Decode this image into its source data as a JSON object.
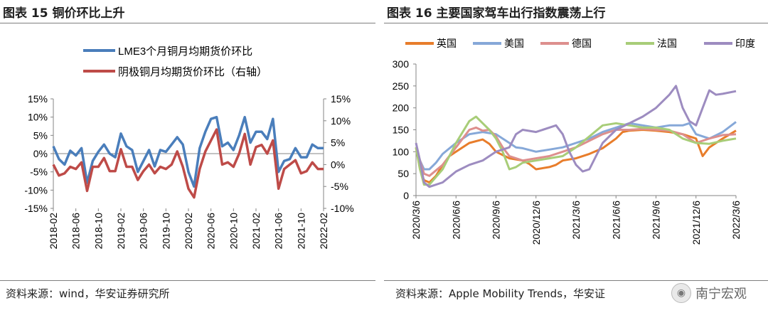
{
  "left": {
    "title": "图表 15 铜价环比上升",
    "source": "资料来源：wind，华安证券研究所",
    "chart_data": {
      "type": "line",
      "title": "铜价环比上升",
      "categories": [
        "2018-02",
        "2018-03",
        "2018-04",
        "2018-05",
        "2018-06",
        "2018-07",
        "2018-08",
        "2018-09",
        "2018-10",
        "2018-11",
        "2018-12",
        "2019-01",
        "2019-02",
        "2019-03",
        "2019-04",
        "2019-05",
        "2019-06",
        "2019-07",
        "2019-08",
        "2019-09",
        "2019-10",
        "2019-11",
        "2019-12",
        "2020-01",
        "2020-02",
        "2020-03",
        "2020-04",
        "2020-05",
        "2020-06",
        "2020-07",
        "2020-08",
        "2020-09",
        "2020-10",
        "2020-11",
        "2020-12",
        "2021-01",
        "2021-02",
        "2021-03",
        "2021-04",
        "2021-05",
        "2021-06",
        "2021-07",
        "2021-08",
        "2021-09",
        "2021-10",
        "2021-11",
        "2021-12",
        "2022-01",
        "2022-02"
      ],
      "tick_labels": [
        "2018-02",
        "2018-06",
        "2018-10",
        "2019-02",
        "2019-06",
        "2019-10",
        "2020-02",
        "2020-06",
        "2020-10",
        "2021-02",
        "2021-06",
        "2021-10",
        "2022-02"
      ],
      "left_axis": {
        "ticks": [
          "15%",
          "10%",
          "5%",
          "0%",
          "-5%",
          "-10%",
          "-15%"
        ],
        "min": -15,
        "max": 15
      },
      "right_axis": {
        "ticks": [
          "15%",
          "10%",
          "5%",
          "0%",
          "-5%",
          "-10%"
        ],
        "min": -10,
        "max": 15
      },
      "series": [
        {
          "name": "LME3个月铜月均期货价环比",
          "axis": "left",
          "color": "#4a7ebb",
          "values": [
            2.0,
            -1.5,
            -3.0,
            0.8,
            -0.5,
            1.5,
            -8.0,
            -2.0,
            0.5,
            2.5,
            0.0,
            -1.0,
            5.5,
            2.0,
            1.0,
            -5.0,
            -2.0,
            1.0,
            -3.5,
            1.0,
            0.5,
            2.5,
            4.5,
            2.5,
            -5.0,
            -9.0,
            1.5,
            6.0,
            9.5,
            10.0,
            2.0,
            3.0,
            1.0,
            5.0,
            10.0,
            3.0,
            6.0,
            6.0,
            4.0,
            9.5,
            -5.0,
            -2.0,
            -1.5,
            1.5,
            -1.0,
            -1.0,
            2.5,
            1.5,
            1.5
          ]
        },
        {
          "name": "阴极铜月均期货价环比（右轴）",
          "axis": "right",
          "color": "#be4b48",
          "values": [
            0.0,
            -2.5,
            -2.0,
            -0.5,
            -1.0,
            0.5,
            -6.0,
            -0.5,
            -0.5,
            1.5,
            -1.5,
            -1.5,
            3.5,
            -0.5,
            -0.5,
            -3.5,
            -1.5,
            0.0,
            -2.0,
            -0.5,
            -1.0,
            0.0,
            3.0,
            -0.5,
            -5.5,
            -7.5,
            -1.0,
            3.0,
            5.5,
            8.0,
            0.0,
            0.5,
            -0.5,
            2.5,
            7.0,
            0.0,
            4.0,
            4.5,
            2.5,
            5.5,
            -5.5,
            -1.0,
            0.0,
            1.0,
            -2.0,
            -1.5,
            0.5,
            -1.0,
            -1.0
          ]
        }
      ],
      "legend_position": "top"
    }
  },
  "right": {
    "title": "图表 16 主要国家驾车出行指数震荡上行",
    "source": "资料来源：Apple Mobility Trends，华安证",
    "watermark": "南宁宏观",
    "chart_data": {
      "type": "line",
      "title": "主要国家驾车出行指数震荡上行",
      "x_ticks": [
        "2020/3/6",
        "2020/6/6",
        "2020/9/6",
        "2020/12/6",
        "2021/3/6",
        "2021/6/6",
        "2021/9/6",
        "2021/12/6",
        "2022/3/6"
      ],
      "x_range": [
        0,
        24
      ],
      "y_ticks": [
        "300",
        "250",
        "200",
        "150",
        "100",
        "50",
        "0"
      ],
      "ylim": [
        0,
        300
      ],
      "legend_position": "top",
      "series": [
        {
          "name": "英国",
          "color": "#e87d2b",
          "x": [
            0,
            0.3,
            0.6,
            1,
            1.5,
            2,
            2.5,
            3,
            4,
            5,
            5.5,
            6,
            7,
            8,
            8.5,
            9,
            10,
            10.5,
            11,
            12,
            13,
            14,
            15,
            15.5,
            16,
            17,
            18,
            19,
            20,
            21,
            21.5,
            22,
            23,
            24
          ],
          "values": [
            110,
            60,
            35,
            30,
            45,
            70,
            90,
            100,
            120,
            128,
            118,
            100,
            85,
            80,
            72,
            60,
            65,
            70,
            80,
            85,
            95,
            108,
            130,
            145,
            148,
            150,
            148,
            145,
            140,
            130,
            90,
            110,
            130,
            148
          ]
        },
        {
          "name": "美国",
          "color": "#86a8d8",
          "x": [
            0,
            0.3,
            0.6,
            1,
            1.5,
            2,
            3,
            4,
            5,
            6,
            7,
            7.5,
            8,
            9,
            10,
            11,
            12,
            13,
            14,
            15,
            16,
            17,
            18,
            19,
            20,
            20.5,
            21,
            22,
            23,
            24
          ],
          "values": [
            110,
            80,
            60,
            60,
            75,
            95,
            120,
            140,
            145,
            140,
            120,
            110,
            108,
            100,
            105,
            110,
            120,
            130,
            145,
            155,
            165,
            160,
            155,
            160,
            160,
            165,
            140,
            130,
            145,
            168
          ]
        },
        {
          "name": "德国",
          "color": "#dd8f8d",
          "x": [
            0,
            0.3,
            0.6,
            1,
            2,
            3,
            4,
            4.5,
            5,
            5.5,
            6,
            6.5,
            7,
            8,
            9,
            10,
            11,
            12,
            13,
            14,
            15,
            16,
            17,
            18,
            19,
            20,
            21,
            22,
            23,
            24
          ],
          "values": [
            110,
            80,
            50,
            45,
            70,
            110,
            150,
            155,
            148,
            150,
            135,
            110,
            90,
            80,
            85,
            90,
            100,
            110,
            125,
            140,
            150,
            150,
            152,
            150,
            148,
            140,
            120,
            130,
            138,
            140
          ]
        },
        {
          "name": "法国",
          "color": "#a8cd78",
          "x": [
            0,
            0.3,
            0.6,
            1,
            2,
            3,
            4,
            4.5,
            5,
            5.5,
            6,
            6.5,
            7,
            7.5,
            8,
            9,
            10,
            11,
            12,
            13,
            14,
            15,
            16,
            17,
            18,
            19,
            20,
            21,
            22,
            23,
            24
          ],
          "values": [
            110,
            60,
            25,
            25,
            60,
            120,
            170,
            180,
            165,
            150,
            130,
            100,
            60,
            65,
            75,
            80,
            85,
            90,
            110,
            135,
            160,
            165,
            160,
            155,
            155,
            150,
            130,
            120,
            118,
            125,
            130
          ]
        },
        {
          "name": "印度",
          "color": "#9d8cc0",
          "x": [
            0,
            0.3,
            0.6,
            1,
            2,
            3,
            4,
            5,
            6,
            7,
            7.5,
            8,
            9,
            10,
            10.5,
            11,
            11.5,
            12,
            12.5,
            13,
            13.5,
            14,
            15,
            16,
            17,
            18,
            19,
            19.5,
            20,
            20.5,
            21,
            21.5,
            22,
            22.5,
            23,
            24
          ],
          "values": [
            120,
            80,
            30,
            20,
            30,
            55,
            70,
            80,
            100,
            110,
            140,
            150,
            145,
            155,
            160,
            140,
            100,
            70,
            55,
            60,
            90,
            120,
            150,
            165,
            180,
            200,
            230,
            250,
            200,
            170,
            160,
            200,
            240,
            230,
            232,
            238
          ]
        }
      ]
    }
  }
}
